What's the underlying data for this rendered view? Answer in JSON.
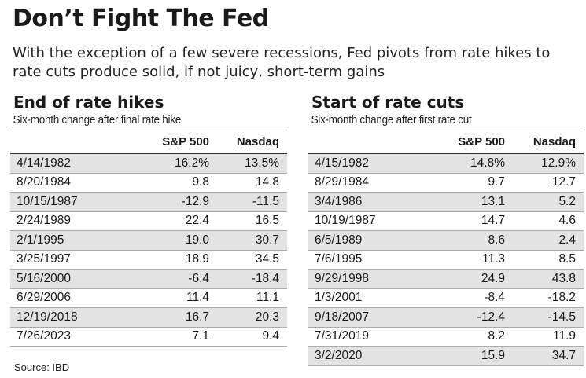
{
  "header": {
    "title": "Don’t Fight The Fed",
    "subtitle": "With the exception of a few severe recessions, Fed pivots from rate hikes to rate cuts produce solid, if not juicy, short-term gains"
  },
  "footer": {
    "source": "Source: IBD"
  },
  "chart_data": [
    {
      "type": "table",
      "title": "End of rate hikes",
      "subtitle": "Six-month change after final rate hike",
      "columns": [
        "",
        "S&P 500",
        "Nasdaq"
      ],
      "rows": [
        {
          "date": "4/14/1982",
          "sp": "16.2%",
          "nq": "13.5%"
        },
        {
          "date": "8/20/1984",
          "sp": "9.8",
          "nq": "14.8"
        },
        {
          "date": "10/15/1987",
          "sp": "-12.9",
          "nq": "-11.5"
        },
        {
          "date": "2/24/1989",
          "sp": "22.4",
          "nq": "16.5"
        },
        {
          "date": "2/1/1995",
          "sp": "19.0",
          "nq": "30.7"
        },
        {
          "date": "3/25/1997",
          "sp": "18.9",
          "nq": "34.5"
        },
        {
          "date": "5/16/2000",
          "sp": "-6.4",
          "nq": "-18.4"
        },
        {
          "date": "6/29/2006",
          "sp": "11.4",
          "nq": "11.1"
        },
        {
          "date": "12/19/2018",
          "sp": "16.7",
          "nq": "20.3"
        },
        {
          "date": "7/26/2023",
          "sp": "7.1",
          "nq": "9.4"
        }
      ]
    },
    {
      "type": "table",
      "title": "Start of rate cuts",
      "subtitle": "Six-month change after first rate cut",
      "columns": [
        "",
        "S&P 500",
        "Nasdaq"
      ],
      "rows": [
        {
          "date": "4/15/1982",
          "sp": "14.8%",
          "nq": "12.9%"
        },
        {
          "date": "8/29/1984",
          "sp": "9.7",
          "nq": "12.7"
        },
        {
          "date": "3/4/1986",
          "sp": "13.1",
          "nq": "5.2"
        },
        {
          "date": "10/19/1987",
          "sp": "14.7",
          "nq": "4.6"
        },
        {
          "date": "6/5/1989",
          "sp": "8.6",
          "nq": "2.4"
        },
        {
          "date": "7/6/1995",
          "sp": "11.3",
          "nq": "8.5"
        },
        {
          "date": "9/29/1998",
          "sp": "24.9",
          "nq": "43.8"
        },
        {
          "date": "1/3/2001",
          "sp": "-8.4",
          "nq": "-18.2"
        },
        {
          "date": "9/18/2007",
          "sp": "-12.4",
          "nq": "-14.5"
        },
        {
          "date": "7/31/2019",
          "sp": "8.2",
          "nq": "11.9"
        },
        {
          "date": "3/2/2020",
          "sp": "15.9",
          "nq": "34.7"
        }
      ]
    }
  ]
}
